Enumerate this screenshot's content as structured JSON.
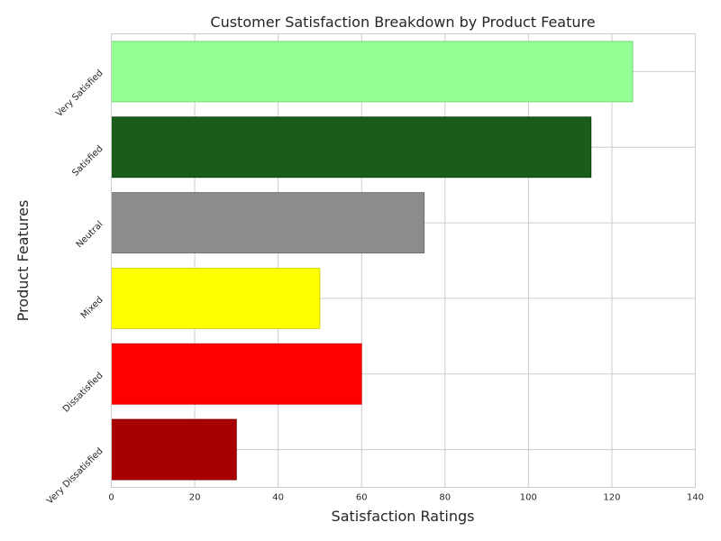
{
  "chart_data": {
    "type": "bar",
    "orientation": "horizontal",
    "title": "Customer Satisfaction Breakdown by Product Feature",
    "xlabel": "Satisfaction Ratings",
    "ylabel": "Product Features",
    "xlim": [
      0,
      140
    ],
    "xticks": [
      0,
      20,
      40,
      60,
      80,
      100,
      120,
      140
    ],
    "grid": true,
    "categories": [
      "Very Dissatisfied",
      "Dissatisfied",
      "Mixed",
      "Neutral",
      "Satisfied",
      "Very Satisfied"
    ],
    "values": [
      30,
      60,
      50,
      75,
      115,
      125
    ],
    "colors": [
      "#a80000",
      "#ff0000",
      "#ffff00",
      "#8c8c8c",
      "#1a5c1a",
      "#94ff94"
    ],
    "edge_colors": [
      "#7a0000",
      "#cc0000",
      "#cccc00",
      "#666666",
      "#0f3d0f",
      "#6acc6a"
    ]
  }
}
